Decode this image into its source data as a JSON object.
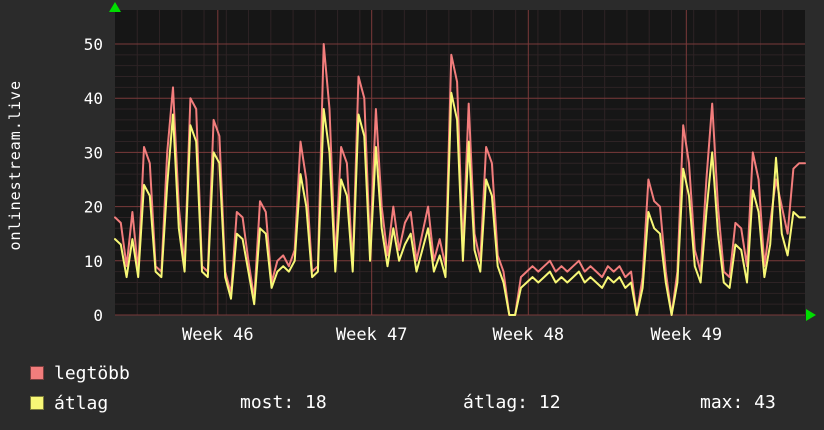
{
  "page": {
    "bg_color": "#2b2b2b",
    "text_color": "#ffffff",
    "plot_bg_color": "#161616",
    "grid_minor_color": "#2e2325",
    "grid_major_color": "#7a3a3a",
    "arrow_color": "#00dd00"
  },
  "sidebar_title": "onlinestream.live",
  "chart_data": {
    "type": "line",
    "title": "",
    "xlabel": "",
    "ylabel": "",
    "ylim": [
      0,
      50
    ],
    "y_ticks": [
      0,
      10,
      20,
      30,
      40,
      50
    ],
    "x_ticks": [
      {
        "label": "Week 46",
        "pos": 0.149
      },
      {
        "label": "Week 47",
        "pos": 0.372
      },
      {
        "label": "Week 48",
        "pos": 0.599
      },
      {
        "label": "Week 49",
        "pos": 0.828
      }
    ],
    "grid": true,
    "legend_position": "bottom-left",
    "series": [
      {
        "name": "legtöbb",
        "color": "#f27d7c",
        "values": [
          18,
          17,
          9,
          19,
          8,
          31,
          28,
          9,
          8,
          30,
          42,
          20,
          9,
          40,
          38,
          9,
          8,
          36,
          33,
          8,
          4,
          19,
          18,
          10,
          3,
          21,
          19,
          6,
          10,
          11,
          9,
          12,
          32,
          25,
          8,
          9,
          50,
          38,
          10,
          31,
          28,
          9,
          44,
          40,
          12,
          38,
          20,
          11,
          20,
          12,
          17,
          19,
          10,
          15,
          20,
          10,
          14,
          9,
          48,
          43,
          12,
          39,
          15,
          10,
          31,
          28,
          11,
          8,
          0,
          0,
          7,
          8,
          9,
          8,
          9,
          10,
          8,
          9,
          8,
          9,
          10,
          8,
          9,
          8,
          7,
          9,
          8,
          9,
          7,
          8,
          0,
          7,
          25,
          21,
          20,
          8,
          0,
          8,
          35,
          28,
          12,
          8,
          25,
          39,
          20,
          8,
          7,
          17,
          16,
          9,
          30,
          25,
          9,
          17,
          25,
          20,
          15,
          27,
          28,
          28
        ]
      },
      {
        "name": "átlag",
        "color": "#f7f776",
        "values": [
          14,
          13,
          7,
          14,
          7,
          24,
          22,
          8,
          7,
          24,
          37,
          16,
          8,
          35,
          32,
          8,
          7,
          30,
          28,
          7,
          3,
          15,
          14,
          8,
          2,
          16,
          15,
          5,
          8,
          9,
          8,
          10,
          26,
          20,
          7,
          8,
          38,
          30,
          8,
          25,
          22,
          8,
          37,
          33,
          10,
          31,
          16,
          9,
          16,
          10,
          13,
          15,
          8,
          12,
          16,
          8,
          11,
          7,
          41,
          36,
          10,
          32,
          12,
          8,
          25,
          22,
          9,
          6,
          0,
          0,
          5,
          6,
          7,
          6,
          7,
          8,
          6,
          7,
          6,
          7,
          8,
          6,
          7,
          6,
          5,
          7,
          6,
          7,
          5,
          6,
          0,
          5,
          19,
          16,
          15,
          6,
          0,
          6,
          27,
          22,
          9,
          6,
          19,
          30,
          15,
          6,
          5,
          13,
          12,
          6,
          23,
          19,
          7,
          13,
          29,
          15,
          11,
          19,
          18,
          18
        ]
      }
    ]
  },
  "legend": {
    "items": [
      {
        "label": "legtöbb",
        "color": "#f27d7c"
      },
      {
        "label": "átlag",
        "color": "#f7f776"
      }
    ],
    "stats": [
      {
        "text": "most: 18"
      },
      {
        "text": "átlag: 12"
      },
      {
        "text": "max: 43"
      }
    ]
  }
}
